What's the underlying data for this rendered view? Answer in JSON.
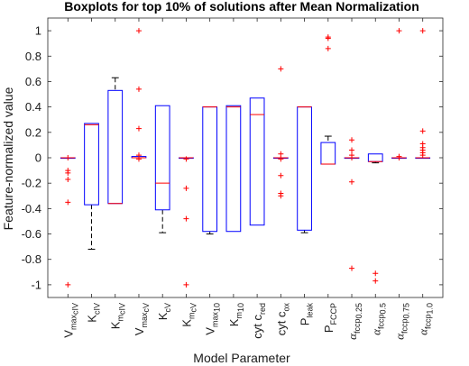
{
  "chart_data": {
    "type": "boxplot",
    "title": "Boxplots for top 10% of solutions after Mean Normalization",
    "xlabel": "Model Parameter",
    "ylabel": "Feature-normalized value",
    "ylim": [
      -1.1,
      1.1
    ],
    "yticks": [
      "-1",
      "-0.8",
      "-0.6",
      "-0.4",
      "-0.2",
      "0",
      "0.2",
      "0.4",
      "0.6",
      "0.8",
      "1"
    ],
    "categories": [
      {
        "id": "vmax_civ",
        "main": "V",
        "sub": "max",
        "subsub": "cIV"
      },
      {
        "id": "k_civ",
        "main": "K",
        "sub": "cIV"
      },
      {
        "id": "km_civ",
        "main": "K",
        "sub": "m",
        "subsub": "cIV"
      },
      {
        "id": "vmax_cv",
        "main": "V",
        "sub": "max",
        "subsub": "cV"
      },
      {
        "id": "k_cv",
        "main": "K",
        "sub": "cV"
      },
      {
        "id": "km_cv",
        "main": "K",
        "sub": "m",
        "subsub": "cV"
      },
      {
        "id": "vmax_10",
        "main": "V",
        "sub": "max",
        "subsub": "10"
      },
      {
        "id": "km_10",
        "main": "K",
        "sub": "m",
        "subsub": "10"
      },
      {
        "id": "cytc_red",
        "main": "cyt c",
        "sub": "red"
      },
      {
        "id": "cytc_ox",
        "main": "cyt c",
        "sub": "ox"
      },
      {
        "id": "p_leak",
        "main": "P",
        "sub": "leak"
      },
      {
        "id": "p_fccp",
        "main": "P",
        "sub": "FCCP"
      },
      {
        "id": "a_fccp_025",
        "main": "α",
        "greek": true,
        "sub": "fccp",
        "subsub": "0.25"
      },
      {
        "id": "a_fccp_05",
        "main": "α",
        "greek": true,
        "sub": "fccp",
        "subsub": "0.5"
      },
      {
        "id": "a_fccp_075",
        "main": "α",
        "greek": true,
        "sub": "fccp",
        "subsub": "0.75"
      },
      {
        "id": "a_fccp_10",
        "main": "α",
        "greek": true,
        "sub": "fccp",
        "subsub": "1.0"
      }
    ],
    "boxes": [
      {
        "q1": 0,
        "med": 0,
        "q3": 0,
        "wlo": 0,
        "whi": 0,
        "outliers": [
          -1,
          -0.35,
          -0.17,
          -0.12,
          -0.1,
          0
        ]
      },
      {
        "q1": -0.37,
        "med": 0.26,
        "q3": 0.27,
        "wlo": -0.72,
        "whi": 0.27,
        "outliers": []
      },
      {
        "q1": -0.36,
        "med": -0.36,
        "q3": 0.53,
        "wlo": -0.36,
        "whi": 0.63,
        "outliers": []
      },
      {
        "q1": 0,
        "med": 0,
        "q3": 0.01,
        "wlo": 0,
        "whi": 0.01,
        "outliers": [
          1,
          0.54,
          0.23,
          0.02,
          -0.01
        ]
      },
      {
        "q1": -0.41,
        "med": -0.2,
        "q3": 0.41,
        "wlo": -0.59,
        "whi": 0.41,
        "outliers": []
      },
      {
        "q1": 0,
        "med": 0,
        "q3": 0,
        "wlo": 0,
        "whi": 0,
        "outliers": [
          -0.01,
          -0.24,
          -0.48,
          -1
        ]
      },
      {
        "q1": -0.58,
        "med": 0.4,
        "q3": 0.4,
        "wlo": -0.6,
        "whi": 0.4,
        "outliers": []
      },
      {
        "q1": -0.58,
        "med": 0.4,
        "q3": 0.41,
        "wlo": -0.58,
        "whi": 0.41,
        "outliers": []
      },
      {
        "q1": -0.53,
        "med": 0.34,
        "q3": 0.47,
        "wlo": -0.53,
        "whi": 0.47,
        "outliers": []
      },
      {
        "q1": 0,
        "med": 0,
        "q3": 0,
        "wlo": 0,
        "whi": 0,
        "outliers": [
          0.7,
          0.03,
          -0.01,
          -0.14,
          -0.28,
          -0.3
        ]
      },
      {
        "q1": -0.57,
        "med": 0.4,
        "q3": 0.4,
        "wlo": -0.59,
        "whi": 0.4,
        "outliers": []
      },
      {
        "q1": -0.05,
        "med": -0.05,
        "q3": 0.12,
        "wlo": -0.05,
        "whi": 0.17,
        "outliers": [
          0.95,
          0.94,
          0.86
        ]
      },
      {
        "q1": 0,
        "med": 0,
        "q3": 0,
        "wlo": 0,
        "whi": 0,
        "outliers": [
          0.14,
          0.06,
          0.02,
          0,
          -0.19,
          -0.87
        ]
      },
      {
        "q1": -0.03,
        "med": -0.03,
        "q3": 0.03,
        "wlo": -0.04,
        "whi": 0.03,
        "outliers": [
          -0.91,
          -0.97
        ]
      },
      {
        "q1": 0,
        "med": 0,
        "q3": 0,
        "wlo": 0,
        "whi": 0,
        "outliers": [
          1,
          0.01,
          0
        ]
      },
      {
        "q1": 0,
        "med": 0,
        "q3": 0,
        "wlo": 0,
        "whi": 0,
        "outliers": [
          1,
          0.21,
          0.11,
          0.08,
          0.06,
          0.04,
          0.02
        ]
      }
    ],
    "colors": {
      "box": "#0000ff",
      "median": "#ff0000",
      "whisker": "#000000",
      "outlier": "#ff0000"
    }
  }
}
